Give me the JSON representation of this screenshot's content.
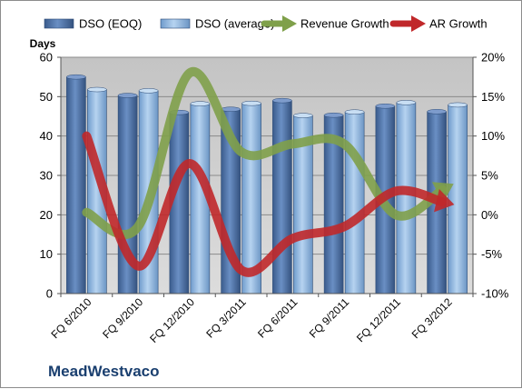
{
  "chart_data": {
    "type": "bar",
    "title": "",
    "company": "MeadWestvaco",
    "y_left_label": "Days",
    "y_left_range": [
      0,
      60
    ],
    "y_left_ticks": [
      "0",
      "10",
      "20",
      "30",
      "40",
      "50",
      "60"
    ],
    "y_right_range": [
      -10,
      20
    ],
    "y_right_ticks": [
      "-10%",
      "-5%",
      "0%",
      "5%",
      "10%",
      "15%",
      "20%"
    ],
    "categories": [
      "FQ 6/2010",
      "FQ 9/2010",
      "FQ 12/2010",
      "FQ 3/2011",
      "FQ 6/2011",
      "FQ 9/2011",
      "FQ 12/2011",
      "FQ 3/2012"
    ],
    "series": [
      {
        "name": "DSO (EOQ)",
        "kind": "bar",
        "axis": "left",
        "color": "#4a6fa5",
        "values": [
          55.0,
          50.3,
          46.0,
          46.8,
          49.0,
          45.3,
          47.6,
          46.2
        ]
      },
      {
        "name": "DSO (average)",
        "kind": "bar",
        "axis": "left",
        "color": "#8fb6e0",
        "values": [
          51.8,
          51.5,
          48.2,
          48.3,
          45.2,
          46.1,
          48.5,
          47.9
        ]
      },
      {
        "name": "Revenue Growth",
        "kind": "line",
        "axis": "right",
        "color": "#7fa04a",
        "values": [
          0.3,
          -1.5,
          18.0,
          8.0,
          9.0,
          9.0,
          0.0,
          3.5
        ]
      },
      {
        "name": "AR Growth",
        "kind": "line",
        "axis": "right",
        "color": "#c0282a",
        "values": [
          10.0,
          -6.5,
          6.5,
          -7.0,
          -3.0,
          -1.5,
          3.0,
          1.5
        ]
      }
    ],
    "legend_position": "top",
    "grid": true
  }
}
